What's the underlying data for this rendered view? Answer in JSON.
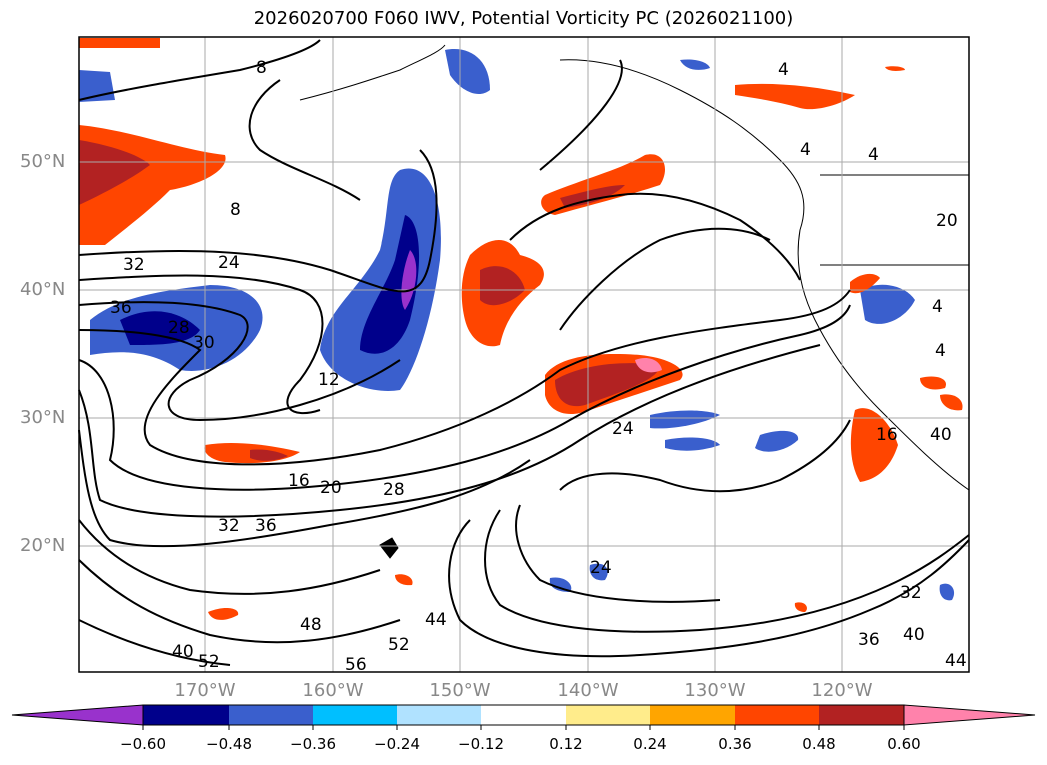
{
  "title": "2026020700 F060 IWV, Potential Vorticity PC (2026021100)",
  "axes": {
    "lat_labels": [
      "50°N",
      "40°N",
      "30°N",
      "20°N"
    ],
    "lon_labels": [
      "170°W",
      "160°W",
      "150°W",
      "140°W",
      "130°W",
      "120°W"
    ]
  },
  "contour_labels": [
    "8",
    "8",
    "4",
    "4",
    "4",
    "4",
    "4",
    "32",
    "24",
    "36",
    "28",
    "30",
    "12",
    "24",
    "16",
    "20",
    "28",
    "32",
    "36",
    "24",
    "16",
    "32",
    "40",
    "48",
    "44",
    "52",
    "40",
    "52",
    "56",
    "36",
    "40",
    "44",
    "20"
  ],
  "colorbar": {
    "ticks": [
      "−0.60",
      "−0.48",
      "−0.36",
      "−0.24",
      "−0.12",
      "0.12",
      "0.24",
      "0.36",
      "0.48",
      "0.60"
    ],
    "colors": [
      "#9932cc",
      "#00008b",
      "#3a5fcd",
      "#00bfff",
      "#b0e2ff",
      "#ffffff",
      "#ffec8b",
      "#ffa500",
      "#ff4500",
      "#b22222",
      "#ff82ab"
    ]
  }
}
